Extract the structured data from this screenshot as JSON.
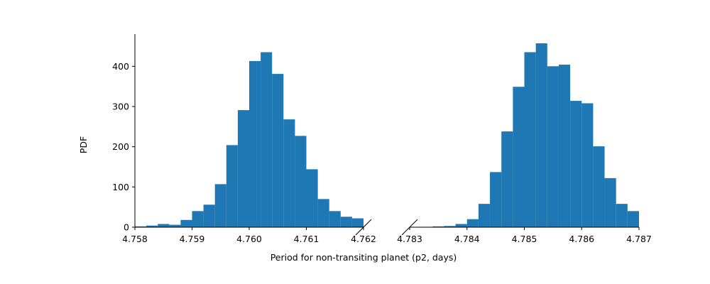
{
  "chart_data": [
    {
      "type": "histogram",
      "panel": "left",
      "ylabel": "PDF",
      "xlim": [
        4.758,
        4.762
      ],
      "ylim": [
        0,
        480
      ],
      "xticks": [
        "4.758",
        "4.759",
        "4.760",
        "4.761",
        "4.762"
      ],
      "yticks": [
        "0",
        "100",
        "200",
        "300",
        "400"
      ],
      "bar_color": "#1f77b4",
      "bins": [
        {
          "x0": 4.758,
          "x1": 4.7582,
          "value": 2
        },
        {
          "x0": 4.7582,
          "x1": 4.7584,
          "value": 4
        },
        {
          "x0": 4.7584,
          "x1": 4.7586,
          "value": 8
        },
        {
          "x0": 4.7586,
          "x1": 4.7588,
          "value": 6
        },
        {
          "x0": 4.7588,
          "x1": 4.759,
          "value": 18
        },
        {
          "x0": 4.759,
          "x1": 4.7592,
          "value": 40
        },
        {
          "x0": 4.7592,
          "x1": 4.7594,
          "value": 56
        },
        {
          "x0": 4.7594,
          "x1": 4.7596,
          "value": 107
        },
        {
          "x0": 4.7596,
          "x1": 4.7598,
          "value": 204
        },
        {
          "x0": 4.7598,
          "x1": 4.76,
          "value": 291
        },
        {
          "x0": 4.76,
          "x1": 4.7602,
          "value": 413
        },
        {
          "x0": 4.7602,
          "x1": 4.7604,
          "value": 435
        },
        {
          "x0": 4.7604,
          "x1": 4.7606,
          "value": 381
        },
        {
          "x0": 4.7606,
          "x1": 4.7608,
          "value": 268
        },
        {
          "x0": 4.7608,
          "x1": 4.761,
          "value": 227
        },
        {
          "x0": 4.761,
          "x1": 4.7612,
          "value": 144
        },
        {
          "x0": 4.7612,
          "x1": 4.7614,
          "value": 70
        },
        {
          "x0": 4.7614,
          "x1": 4.7616,
          "value": 40
        },
        {
          "x0": 4.7616,
          "x1": 4.7618,
          "value": 26
        },
        {
          "x0": 4.7618,
          "x1": 4.762,
          "value": 22
        }
      ]
    },
    {
      "type": "histogram",
      "panel": "right",
      "xlim": [
        4.783,
        4.787
      ],
      "ylim": [
        0,
        480
      ],
      "xticks": [
        "4.783",
        "4.784",
        "4.785",
        "4.786",
        "4.787"
      ],
      "bar_color": "#1f77b4",
      "bins": [
        {
          "x0": 4.7832,
          "x1": 4.7834,
          "value": 1
        },
        {
          "x0": 4.7834,
          "x1": 4.7836,
          "value": 2
        },
        {
          "x0": 4.7836,
          "x1": 4.7838,
          "value": 3
        },
        {
          "x0": 4.7838,
          "x1": 4.784,
          "value": 8
        },
        {
          "x0": 4.784,
          "x1": 4.7842,
          "value": 20
        },
        {
          "x0": 4.7842,
          "x1": 4.7844,
          "value": 58
        },
        {
          "x0": 4.7844,
          "x1": 4.7846,
          "value": 137
        },
        {
          "x0": 4.7846,
          "x1": 4.7848,
          "value": 238
        },
        {
          "x0": 4.7848,
          "x1": 4.785,
          "value": 349
        },
        {
          "x0": 4.785,
          "x1": 4.7852,
          "value": 435
        },
        {
          "x0": 4.7852,
          "x1": 4.7854,
          "value": 457
        },
        {
          "x0": 4.7854,
          "x1": 4.7856,
          "value": 400
        },
        {
          "x0": 4.7856,
          "x1": 4.7858,
          "value": 404
        },
        {
          "x0": 4.7858,
          "x1": 4.786,
          "value": 314
        },
        {
          "x0": 4.786,
          "x1": 4.7862,
          "value": 308
        },
        {
          "x0": 4.7862,
          "x1": 4.7864,
          "value": 201
        },
        {
          "x0": 4.7864,
          "x1": 4.7866,
          "value": 122
        },
        {
          "x0": 4.7866,
          "x1": 4.7868,
          "value": 58
        },
        {
          "x0": 4.7868,
          "x1": 4.787,
          "value": 40
        }
      ]
    }
  ],
  "shared_xlabel": "Period for non-transiting planet (p2, days)"
}
